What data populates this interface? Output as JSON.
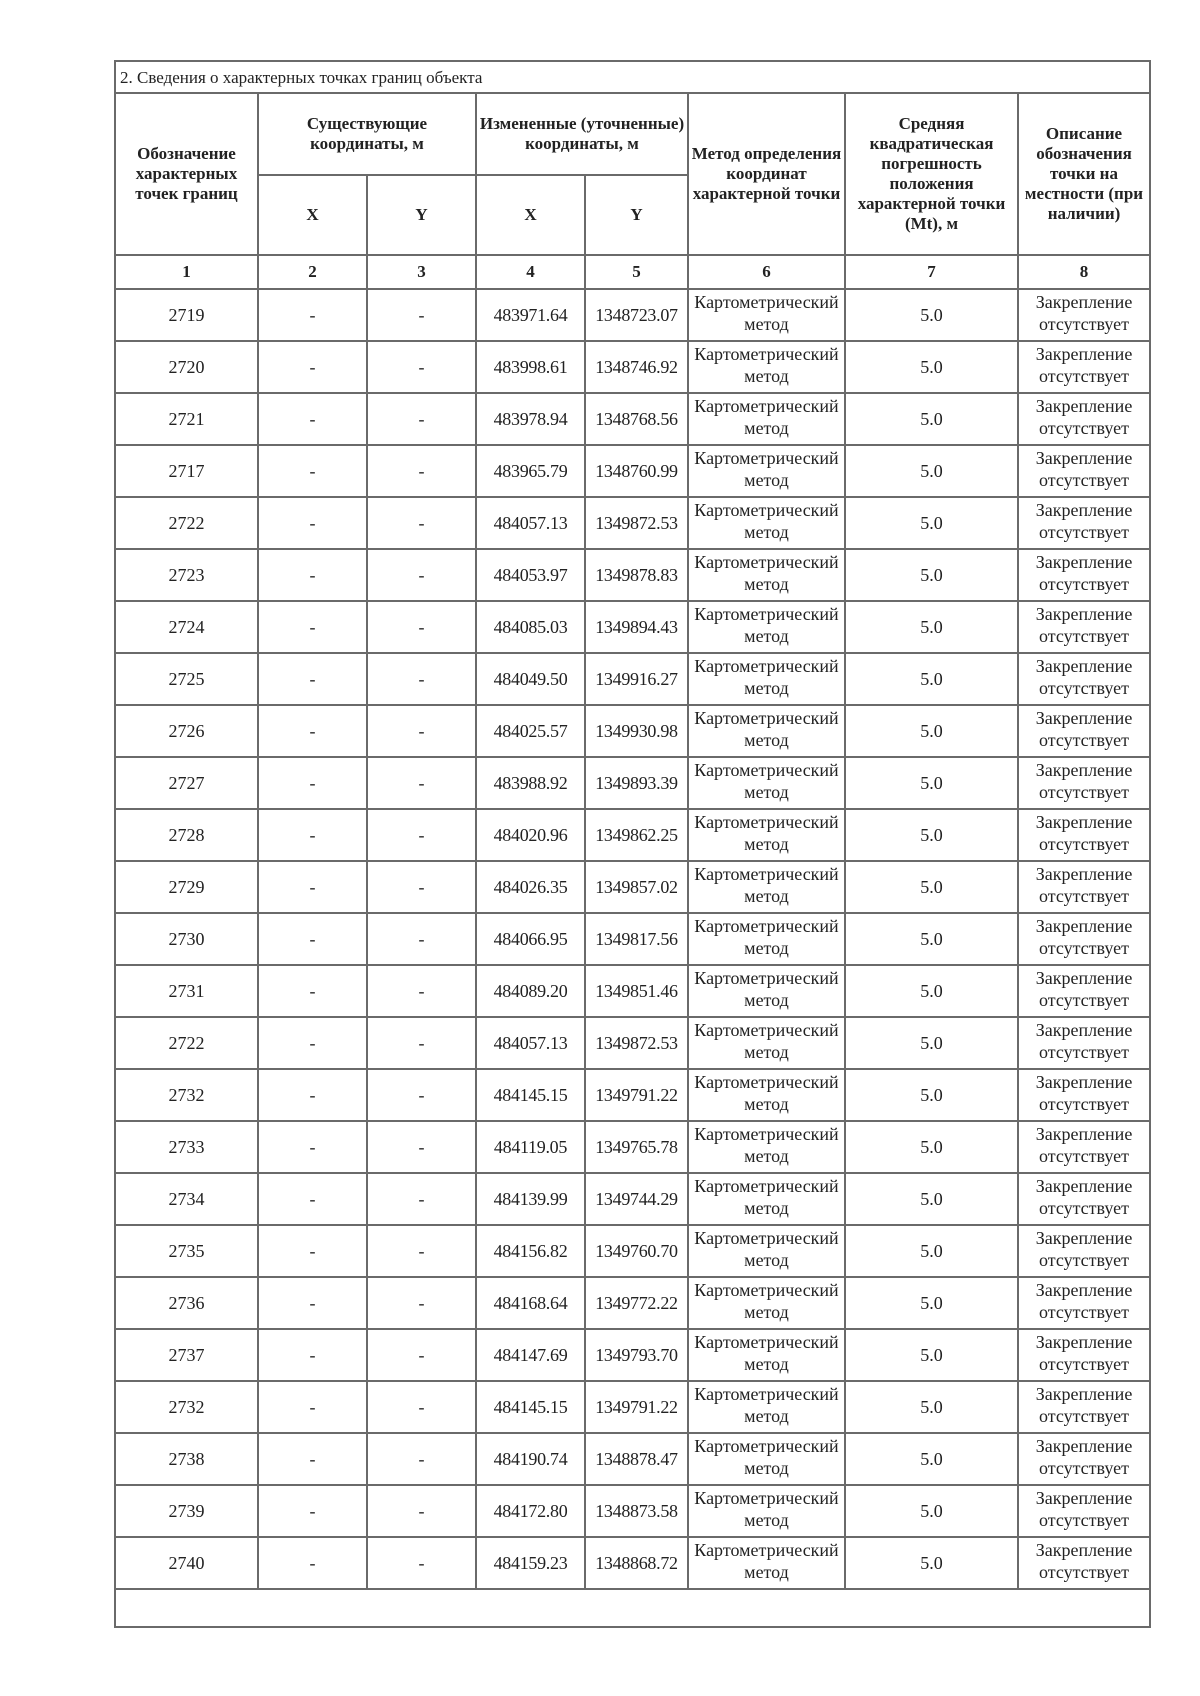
{
  "section_title": "2. Сведения о характерных точках границ объекта",
  "headers": {
    "col1": "Обозначение характерных точек границ",
    "existing": "Существующие координаты, м",
    "changed": "Измененные (уточненные) координаты, м",
    "x": "X",
    "y": "Y",
    "col6": "Метод определения координат характерной точки",
    "col7": "Средняя квадратическая погрешность положения характерной точки (Mt), м",
    "col8": "Описание обозначения точки на местности (при наличии)",
    "numbers": [
      "1",
      "2",
      "3",
      "4",
      "5",
      "6",
      "7",
      "8"
    ]
  },
  "rows": [
    {
      "id": "2719",
      "ex": "-",
      "ey": "-",
      "x": "483971.64",
      "y": "1348723.07",
      "method": "Картометрический метод",
      "mt": "5.0",
      "desc": "Закрепление отсутствует"
    },
    {
      "id": "2720",
      "ex": "-",
      "ey": "-",
      "x": "483998.61",
      "y": "1348746.92",
      "method": "Картометрический метод",
      "mt": "5.0",
      "desc": "Закрепление отсутствует"
    },
    {
      "id": "2721",
      "ex": "-",
      "ey": "-",
      "x": "483978.94",
      "y": "1348768.56",
      "method": "Картометрический метод",
      "mt": "5.0",
      "desc": "Закрепление отсутствует"
    },
    {
      "id": "2717",
      "ex": "-",
      "ey": "-",
      "x": "483965.79",
      "y": "1348760.99",
      "method": "Картометрический метод",
      "mt": "5.0",
      "desc": "Закрепление отсутствует"
    },
    {
      "id": "2722",
      "ex": "-",
      "ey": "-",
      "x": "484057.13",
      "y": "1349872.53",
      "method": "Картометрический метод",
      "mt": "5.0",
      "desc": "Закрепление отсутствует"
    },
    {
      "id": "2723",
      "ex": "-",
      "ey": "-",
      "x": "484053.97",
      "y": "1349878.83",
      "method": "Картометрический метод",
      "mt": "5.0",
      "desc": "Закрепление отсутствует"
    },
    {
      "id": "2724",
      "ex": "-",
      "ey": "-",
      "x": "484085.03",
      "y": "1349894.43",
      "method": "Картометрический метод",
      "mt": "5.0",
      "desc": "Закрепление отсутствует"
    },
    {
      "id": "2725",
      "ex": "-",
      "ey": "-",
      "x": "484049.50",
      "y": "1349916.27",
      "method": "Картометрический метод",
      "mt": "5.0",
      "desc": "Закрепление отсутствует"
    },
    {
      "id": "2726",
      "ex": "-",
      "ey": "-",
      "x": "484025.57",
      "y": "1349930.98",
      "method": "Картометрический метод",
      "mt": "5.0",
      "desc": "Закрепление отсутствует"
    },
    {
      "id": "2727",
      "ex": "-",
      "ey": "-",
      "x": "483988.92",
      "y": "1349893.39",
      "method": "Картометрический метод",
      "mt": "5.0",
      "desc": "Закрепление отсутствует"
    },
    {
      "id": "2728",
      "ex": "-",
      "ey": "-",
      "x": "484020.96",
      "y": "1349862.25",
      "method": "Картометрический метод",
      "mt": "5.0",
      "desc": "Закрепление отсутствует"
    },
    {
      "id": "2729",
      "ex": "-",
      "ey": "-",
      "x": "484026.35",
      "y": "1349857.02",
      "method": "Картометрический метод",
      "mt": "5.0",
      "desc": "Закрепление отсутствует"
    },
    {
      "id": "2730",
      "ex": "-",
      "ey": "-",
      "x": "484066.95",
      "y": "1349817.56",
      "method": "Картометрический метод",
      "mt": "5.0",
      "desc": "Закрепление отсутствует"
    },
    {
      "id": "2731",
      "ex": "-",
      "ey": "-",
      "x": "484089.20",
      "y": "1349851.46",
      "method": "Картометрический метод",
      "mt": "5.0",
      "desc": "Закрепление отсутствует"
    },
    {
      "id": "2722",
      "ex": "-",
      "ey": "-",
      "x": "484057.13",
      "y": "1349872.53",
      "method": "Картометрический метод",
      "mt": "5.0",
      "desc": "Закрепление отсутствует"
    },
    {
      "id": "2732",
      "ex": "-",
      "ey": "-",
      "x": "484145.15",
      "y": "1349791.22",
      "method": "Картометрический метод",
      "mt": "5.0",
      "desc": "Закрепление отсутствует"
    },
    {
      "id": "2733",
      "ex": "-",
      "ey": "-",
      "x": "484119.05",
      "y": "1349765.78",
      "method": "Картометрический метод",
      "mt": "5.0",
      "desc": "Закрепление отсутствует"
    },
    {
      "id": "2734",
      "ex": "-",
      "ey": "-",
      "x": "484139.99",
      "y": "1349744.29",
      "method": "Картометрический метод",
      "mt": "5.0",
      "desc": "Закрепление отсутствует"
    },
    {
      "id": "2735",
      "ex": "-",
      "ey": "-",
      "x": "484156.82",
      "y": "1349760.70",
      "method": "Картометрический метод",
      "mt": "5.0",
      "desc": "Закрепление отсутствует"
    },
    {
      "id": "2736",
      "ex": "-",
      "ey": "-",
      "x": "484168.64",
      "y": "1349772.22",
      "method": "Картометрический метод",
      "mt": "5.0",
      "desc": "Закрепление отсутствует"
    },
    {
      "id": "2737",
      "ex": "-",
      "ey": "-",
      "x": "484147.69",
      "y": "1349793.70",
      "method": "Картометрический метод",
      "mt": "5.0",
      "desc": "Закрепление отсутствует"
    },
    {
      "id": "2732",
      "ex": "-",
      "ey": "-",
      "x": "484145.15",
      "y": "1349791.22",
      "method": "Картометрический метод",
      "mt": "5.0",
      "desc": "Закрепление отсутствует"
    },
    {
      "id": "2738",
      "ex": "-",
      "ey": "-",
      "x": "484190.74",
      "y": "1348878.47",
      "method": "Картометрический метод",
      "mt": "5.0",
      "desc": "Закрепление отсутствует"
    },
    {
      "id": "2739",
      "ex": "-",
      "ey": "-",
      "x": "484172.80",
      "y": "1348873.58",
      "method": "Картометрический метод",
      "mt": "5.0",
      "desc": "Закрепление отсутствует"
    },
    {
      "id": "2740",
      "ex": "-",
      "ey": "-",
      "x": "484159.23",
      "y": "1348868.72",
      "method": "Картометрический метод",
      "mt": "5.0",
      "desc": "Закрепление отсутствует"
    }
  ]
}
